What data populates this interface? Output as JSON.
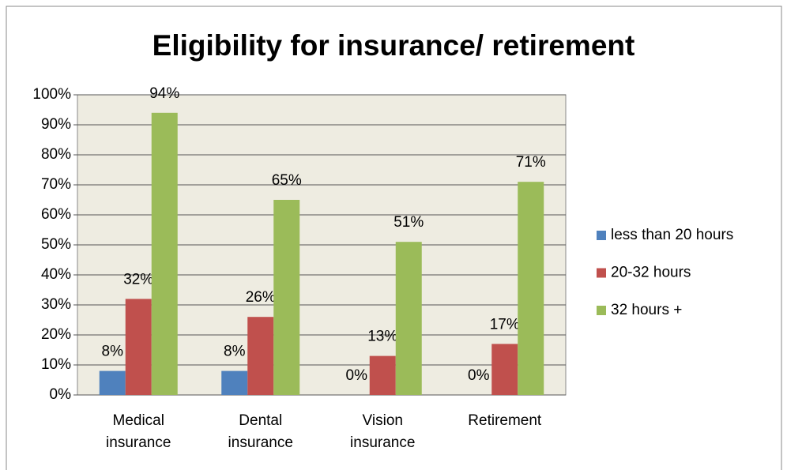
{
  "chart_data": {
    "type": "bar",
    "title": "Eligibility for insurance/ retirement",
    "categories": [
      "Medical insurance",
      "Dental insurance",
      "Vision insurance",
      "Retirement"
    ],
    "series": [
      {
        "name": "less than 20 hours",
        "color": "#4f81bd",
        "values": [
          8,
          8,
          0,
          0
        ],
        "value_labels": [
          "8%",
          "8%",
          "0%",
          "0%"
        ]
      },
      {
        "name": "20-32 hours",
        "color": "#c0504d",
        "values": [
          32,
          26,
          13,
          17
        ],
        "value_labels": [
          "32%",
          "26%",
          "13%",
          "17%"
        ]
      },
      {
        "name": "32 hours +",
        "color": "#9bbb59",
        "values": [
          94,
          65,
          51,
          71
        ],
        "value_labels": [
          "94%",
          "65%",
          "51%",
          "71%"
        ]
      }
    ],
    "ylim": [
      0,
      100
    ],
    "yticks": [
      {
        "value": 0,
        "label": "0%"
      },
      {
        "value": 10,
        "label": "10%"
      },
      {
        "value": 20,
        "label": "20%"
      },
      {
        "value": 30,
        "label": "30%"
      },
      {
        "value": 40,
        "label": "40%"
      },
      {
        "value": 50,
        "label": "50%"
      },
      {
        "value": 60,
        "label": "60%"
      },
      {
        "value": 70,
        "label": "70%"
      },
      {
        "value": 80,
        "label": "80%"
      },
      {
        "value": 90,
        "label": "90%"
      },
      {
        "value": 100,
        "label": "100%"
      }
    ],
    "grid": true,
    "legend": "right",
    "plot_background": "#eeece1"
  }
}
